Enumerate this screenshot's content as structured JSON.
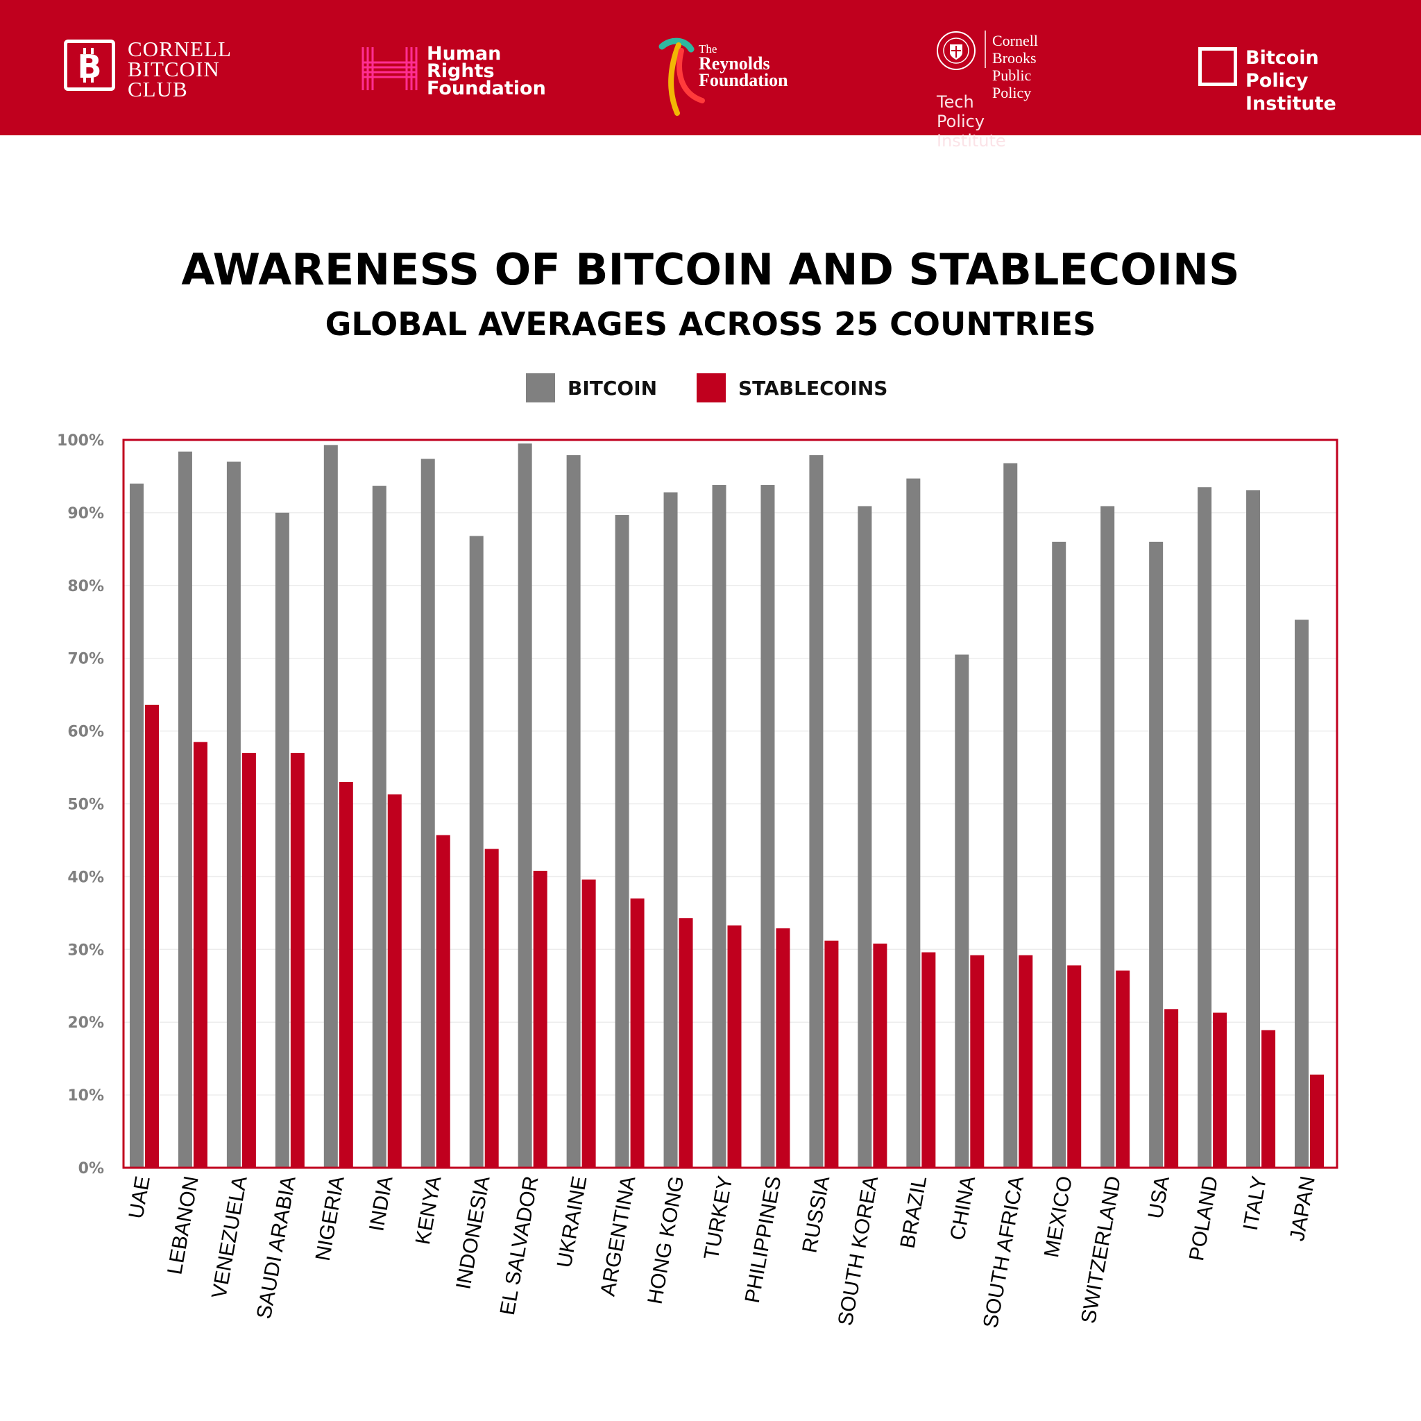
{
  "header": {
    "cornell_bitcoin_club": {
      "lines": [
        "CORNELL",
        "BITCOIN",
        "CLUB"
      ]
    },
    "human_rights_foundation": {
      "lines": [
        "Human",
        "Rights",
        "Foundation"
      ]
    },
    "reynolds_foundation": {
      "the": "The",
      "lines": [
        "Reynolds",
        "Foundation"
      ]
    },
    "cornell_brooks": {
      "lines": [
        "Cornell Brooks",
        "Public Policy"
      ],
      "sub": "Tech Policy Institute"
    },
    "bitcoin_policy_institute": {
      "lines": [
        "Bitcoin Policy",
        "Institute"
      ]
    }
  },
  "colors": {
    "brand_red": "#c0001e",
    "bitcoin_gray": "#808080",
    "stablecoin_red": "#c0001e",
    "axis_text": "#7f7f7f"
  },
  "chart_data": {
    "type": "bar",
    "title": "AWARENESS OF BITCOIN AND STABLECOINS",
    "subtitle": "GLOBAL AVERAGES ACROSS 25 COUNTRIES",
    "xlabel": "",
    "ylabel": "",
    "ylim": [
      0,
      100
    ],
    "yticks": [
      "0%",
      "10%",
      "20%",
      "30%",
      "40%",
      "50%",
      "60%",
      "70%",
      "80%",
      "90%",
      "100%"
    ],
    "legend_position": "top-center",
    "grid": true,
    "categories": [
      "UAE",
      "LEBANON",
      "VENEZUELA",
      "SAUDI ARABIA",
      "NIGERIA",
      "INDIA",
      "KENYA",
      "INDONESIA",
      "EL SALVADOR",
      "UKRAINE",
      "ARGENTINA",
      "HONG KONG",
      "TURKEY",
      "PHILIPPINES",
      "RUSSIA",
      "SOUTH KOREA",
      "BRAZIL",
      "CHINA",
      "SOUTH AFRICA",
      "MEXICO",
      "SWITZERLAND",
      "USA",
      "POLAND",
      "ITALY",
      "JAPAN"
    ],
    "series": [
      {
        "name": "BITCOIN",
        "values": [
          94,
          98.4,
          97,
          90,
          99.3,
          93.7,
          97.4,
          86.8,
          99.5,
          97.9,
          89.7,
          92.8,
          93.8,
          93.8,
          97.9,
          90.9,
          94.7,
          70.5,
          96.8,
          86,
          90.9,
          86,
          93.5,
          93.1,
          75.3
        ]
      },
      {
        "name": "STABLECOINS",
        "values": [
          63.6,
          58.5,
          57,
          57,
          53,
          51.3,
          45.7,
          43.8,
          40.8,
          39.6,
          37,
          34.3,
          33.3,
          32.9,
          31.2,
          30.8,
          29.6,
          29.2,
          29.2,
          27.8,
          27.1,
          21.8,
          21.3,
          18.9,
          12.8
        ]
      }
    ]
  }
}
